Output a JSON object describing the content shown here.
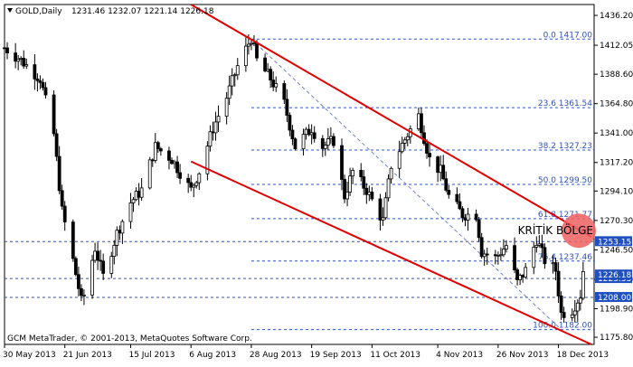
{
  "header": {
    "symbol_tf": "GOLD,Daily",
    "ohlc": "1231.46 1232.07 1221.14 1226.18"
  },
  "copyright": "GCM MetaTrader, © 2001-2013, MetaQuotes Software Corp.",
  "annotation": {
    "zone_label": "KRİTİK BÖLGE"
  },
  "colors": {
    "background": "#ffffff",
    "candle": "#000000",
    "channel": "#e00000",
    "fib": "#3050c0",
    "zone": "#f06060",
    "price_tag_bg": "#2050c0",
    "price_tag_text": "#ffffff"
  },
  "chart_data": {
    "type": "candlestick",
    "y_range": [
      1170,
      1445
    ],
    "y_ticks": [
      "1436.20",
      "1412.05",
      "1388.60",
      "1364.80",
      "1341.00",
      "1317.20",
      "1294.10",
      "1270.30",
      "1246.50",
      "1222.70",
      "1198.90",
      "1175.80"
    ],
    "x_ticks": [
      "30 May 2013",
      "21 Jun 2013",
      "15 Jul 2013",
      "6 Aug 2013",
      "28 Aug 2013",
      "19 Sep 2013",
      "11 Oct 2013",
      "4 Nov 2013",
      "26 Nov 2013",
      "18 Dec 2013"
    ],
    "fib_levels": [
      {
        "label": "0.0 1417.00",
        "price": 1417.0
      },
      {
        "label": "23.6 1361.54",
        "price": 1361.54
      },
      {
        "label": "38.2 1327.23",
        "price": 1327.23
      },
      {
        "label": "50.0 1299.50",
        "price": 1299.5
      },
      {
        "label": "61.8 1271.77",
        "price": 1271.77
      },
      {
        "label": "76.4 1237.46",
        "price": 1237.46
      },
      {
        "label": "100.0 1182.00",
        "price": 1182.0
      }
    ],
    "horizontal_lines": [
      {
        "price": 1253.15,
        "tag": "1253.15"
      },
      {
        "price": 1223.33,
        "tag": "1223.33"
      },
      {
        "price": 1208.0,
        "tag": "1208.00"
      }
    ],
    "current_price_tag": "1226.18",
    "current_price": 1226.18,
    "channel": {
      "upper": [
        [
          "2013-08-06",
          1445
        ],
        [
          "2013-12-30",
          1257
        ]
      ],
      "lower": [
        [
          "2013-08-06",
          1318
        ],
        [
          "2013-12-30",
          1170
        ]
      ]
    },
    "close_path": [
      [
        "2013-05-30",
        1410
      ],
      [
        "2013-06-05",
        1400
      ],
      [
        "2013-06-12",
        1385
      ],
      [
        "2013-06-17",
        1340
      ],
      [
        "2013-06-20",
        1278
      ],
      [
        "2013-06-24",
        1238
      ],
      [
        "2013-06-27",
        1205
      ],
      [
        "2013-06-28",
        1210
      ],
      [
        "2013-07-02",
        1248
      ],
      [
        "2013-07-05",
        1225
      ],
      [
        "2013-07-10",
        1260
      ],
      [
        "2013-07-15",
        1285
      ],
      [
        "2013-07-19",
        1295
      ],
      [
        "2013-07-24",
        1330
      ],
      [
        "2013-07-30",
        1320
      ],
      [
        "2013-08-06",
        1295
      ],
      [
        "2013-08-09",
        1310
      ],
      [
        "2013-08-14",
        1345
      ],
      [
        "2013-08-19",
        1370
      ],
      [
        "2013-08-23",
        1395
      ],
      [
        "2013-08-28",
        1418
      ],
      [
        "2013-08-30",
        1400
      ],
      [
        "2013-09-04",
        1385
      ],
      [
        "2013-09-09",
        1365
      ],
      [
        "2013-09-13",
        1330
      ],
      [
        "2013-09-19",
        1345
      ],
      [
        "2013-09-23",
        1330
      ],
      [
        "2013-09-27",
        1335
      ],
      [
        "2013-10-01",
        1290
      ],
      [
        "2013-10-04",
        1310
      ],
      [
        "2013-10-09",
        1295
      ],
      [
        "2013-10-15",
        1270
      ],
      [
        "2013-10-18",
        1315
      ],
      [
        "2013-10-24",
        1340
      ],
      [
        "2013-10-28",
        1355
      ],
      [
        "2013-11-01",
        1320
      ],
      [
        "2013-11-05",
        1310
      ],
      [
        "2013-11-08",
        1290
      ],
      [
        "2013-11-13",
        1275
      ],
      [
        "2013-11-18",
        1275
      ],
      [
        "2013-11-20",
        1245
      ],
      [
        "2013-11-25",
        1240
      ],
      [
        "2013-11-29",
        1250
      ],
      [
        "2013-12-03",
        1220
      ],
      [
        "2013-12-06",
        1230
      ],
      [
        "2013-12-10",
        1255
      ],
      [
        "2013-12-13",
        1238
      ],
      [
        "2013-12-17",
        1230
      ],
      [
        "2013-12-19",
        1195
      ],
      [
        "2013-12-23",
        1198
      ],
      [
        "2013-12-26",
        1210
      ],
      [
        "2013-12-27",
        1230
      ],
      [
        "2013-12-30",
        1226
      ]
    ]
  }
}
